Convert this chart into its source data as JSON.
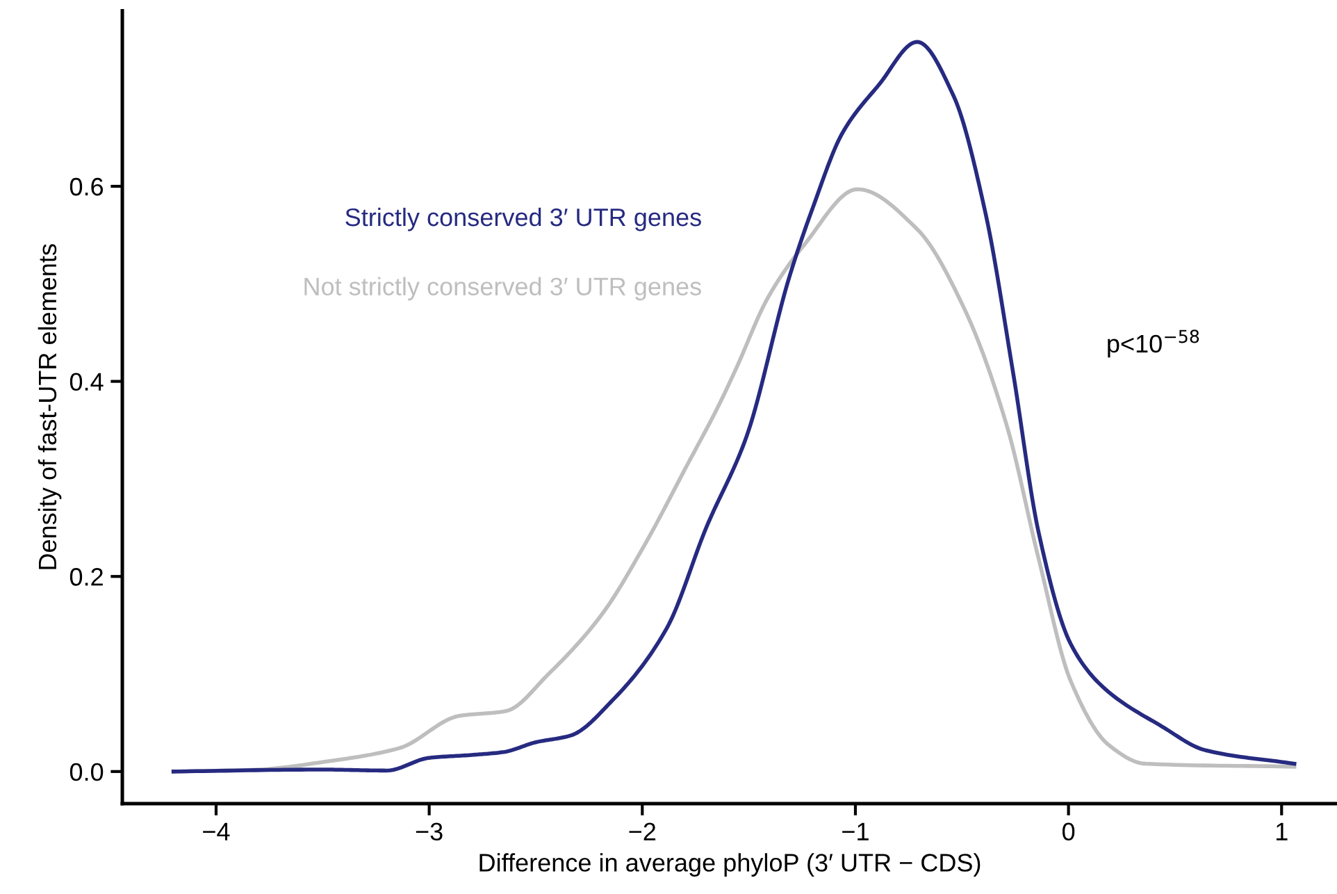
{
  "chart_data": {
    "type": "line",
    "xlabel": "Difference in average phyloP (3′ UTR − CDS)",
    "ylabel": "Density of fast-UTR elements",
    "xlim": [
      -4.44,
      1.26
    ],
    "ylim": [
      -0.033,
      0.78
    ],
    "xticks": [
      {
        "value": -4,
        "label": "−4"
      },
      {
        "value": -3,
        "label": "−3"
      },
      {
        "value": -2,
        "label": "−2"
      },
      {
        "value": -1,
        "label": "−1"
      },
      {
        "value": 0,
        "label": "0"
      },
      {
        "value": 1,
        "label": "1"
      }
    ],
    "yticks": [
      {
        "value": 0,
        "label": "0.0"
      },
      {
        "value": 0.2,
        "label": "0.2"
      },
      {
        "value": 0.4,
        "label": "0.4"
      },
      {
        "value": 0.6,
        "label": "0.6"
      }
    ],
    "grid": false,
    "legend": false,
    "marker": "none",
    "line_style": "solid",
    "series": [
      {
        "name": "Not strictly conserved 3′ UTR genes",
        "color": "#bebebe",
        "x": [
          -4.2,
          -3.8,
          -3.49,
          -3.14,
          -2.86,
          -2.64,
          -2.44,
          -2.19,
          -1.99,
          -1.79,
          -1.64,
          -1.56,
          -1.41,
          -1.24,
          -0.99,
          -0.71,
          -0.49,
          -0.29,
          -0.14,
          0.01,
          0.19,
          0.36,
          1.06
        ],
        "values": [
          0.0,
          0.002,
          0.01,
          0.024,
          0.057,
          0.062,
          0.1,
          0.161,
          0.232,
          0.314,
          0.376,
          0.413,
          0.486,
          0.54,
          0.597,
          0.556,
          0.475,
          0.355,
          0.218,
          0.093,
          0.027,
          0.008,
          0.005
        ]
      },
      {
        "name": "Strictly conserved 3′ UTR genes",
        "color": "#262a80",
        "x": [
          -4.2,
          -3.5,
          -3.2,
          -3.0,
          -2.8,
          -2.65,
          -2.5,
          -2.335,
          -2.14,
          -1.885,
          -1.7,
          -1.51,
          -1.31,
          -1.2,
          -1.06,
          -0.89,
          -0.71,
          -0.54,
          -0.39,
          -0.26,
          -0.14,
          0.01,
          0.16,
          0.44,
          0.64,
          1.06
        ],
        "values": [
          0.0,
          0.002,
          0.001,
          0.014,
          0.017,
          0.02,
          0.03,
          0.037,
          0.073,
          0.147,
          0.25,
          0.344,
          0.507,
          0.578,
          0.655,
          0.704,
          0.748,
          0.693,
          0.573,
          0.409,
          0.245,
          0.131,
          0.087,
          0.046,
          0.022,
          0.008
        ]
      }
    ],
    "annotations": [
      "p<10$^{−58}$"
    ]
  }
}
